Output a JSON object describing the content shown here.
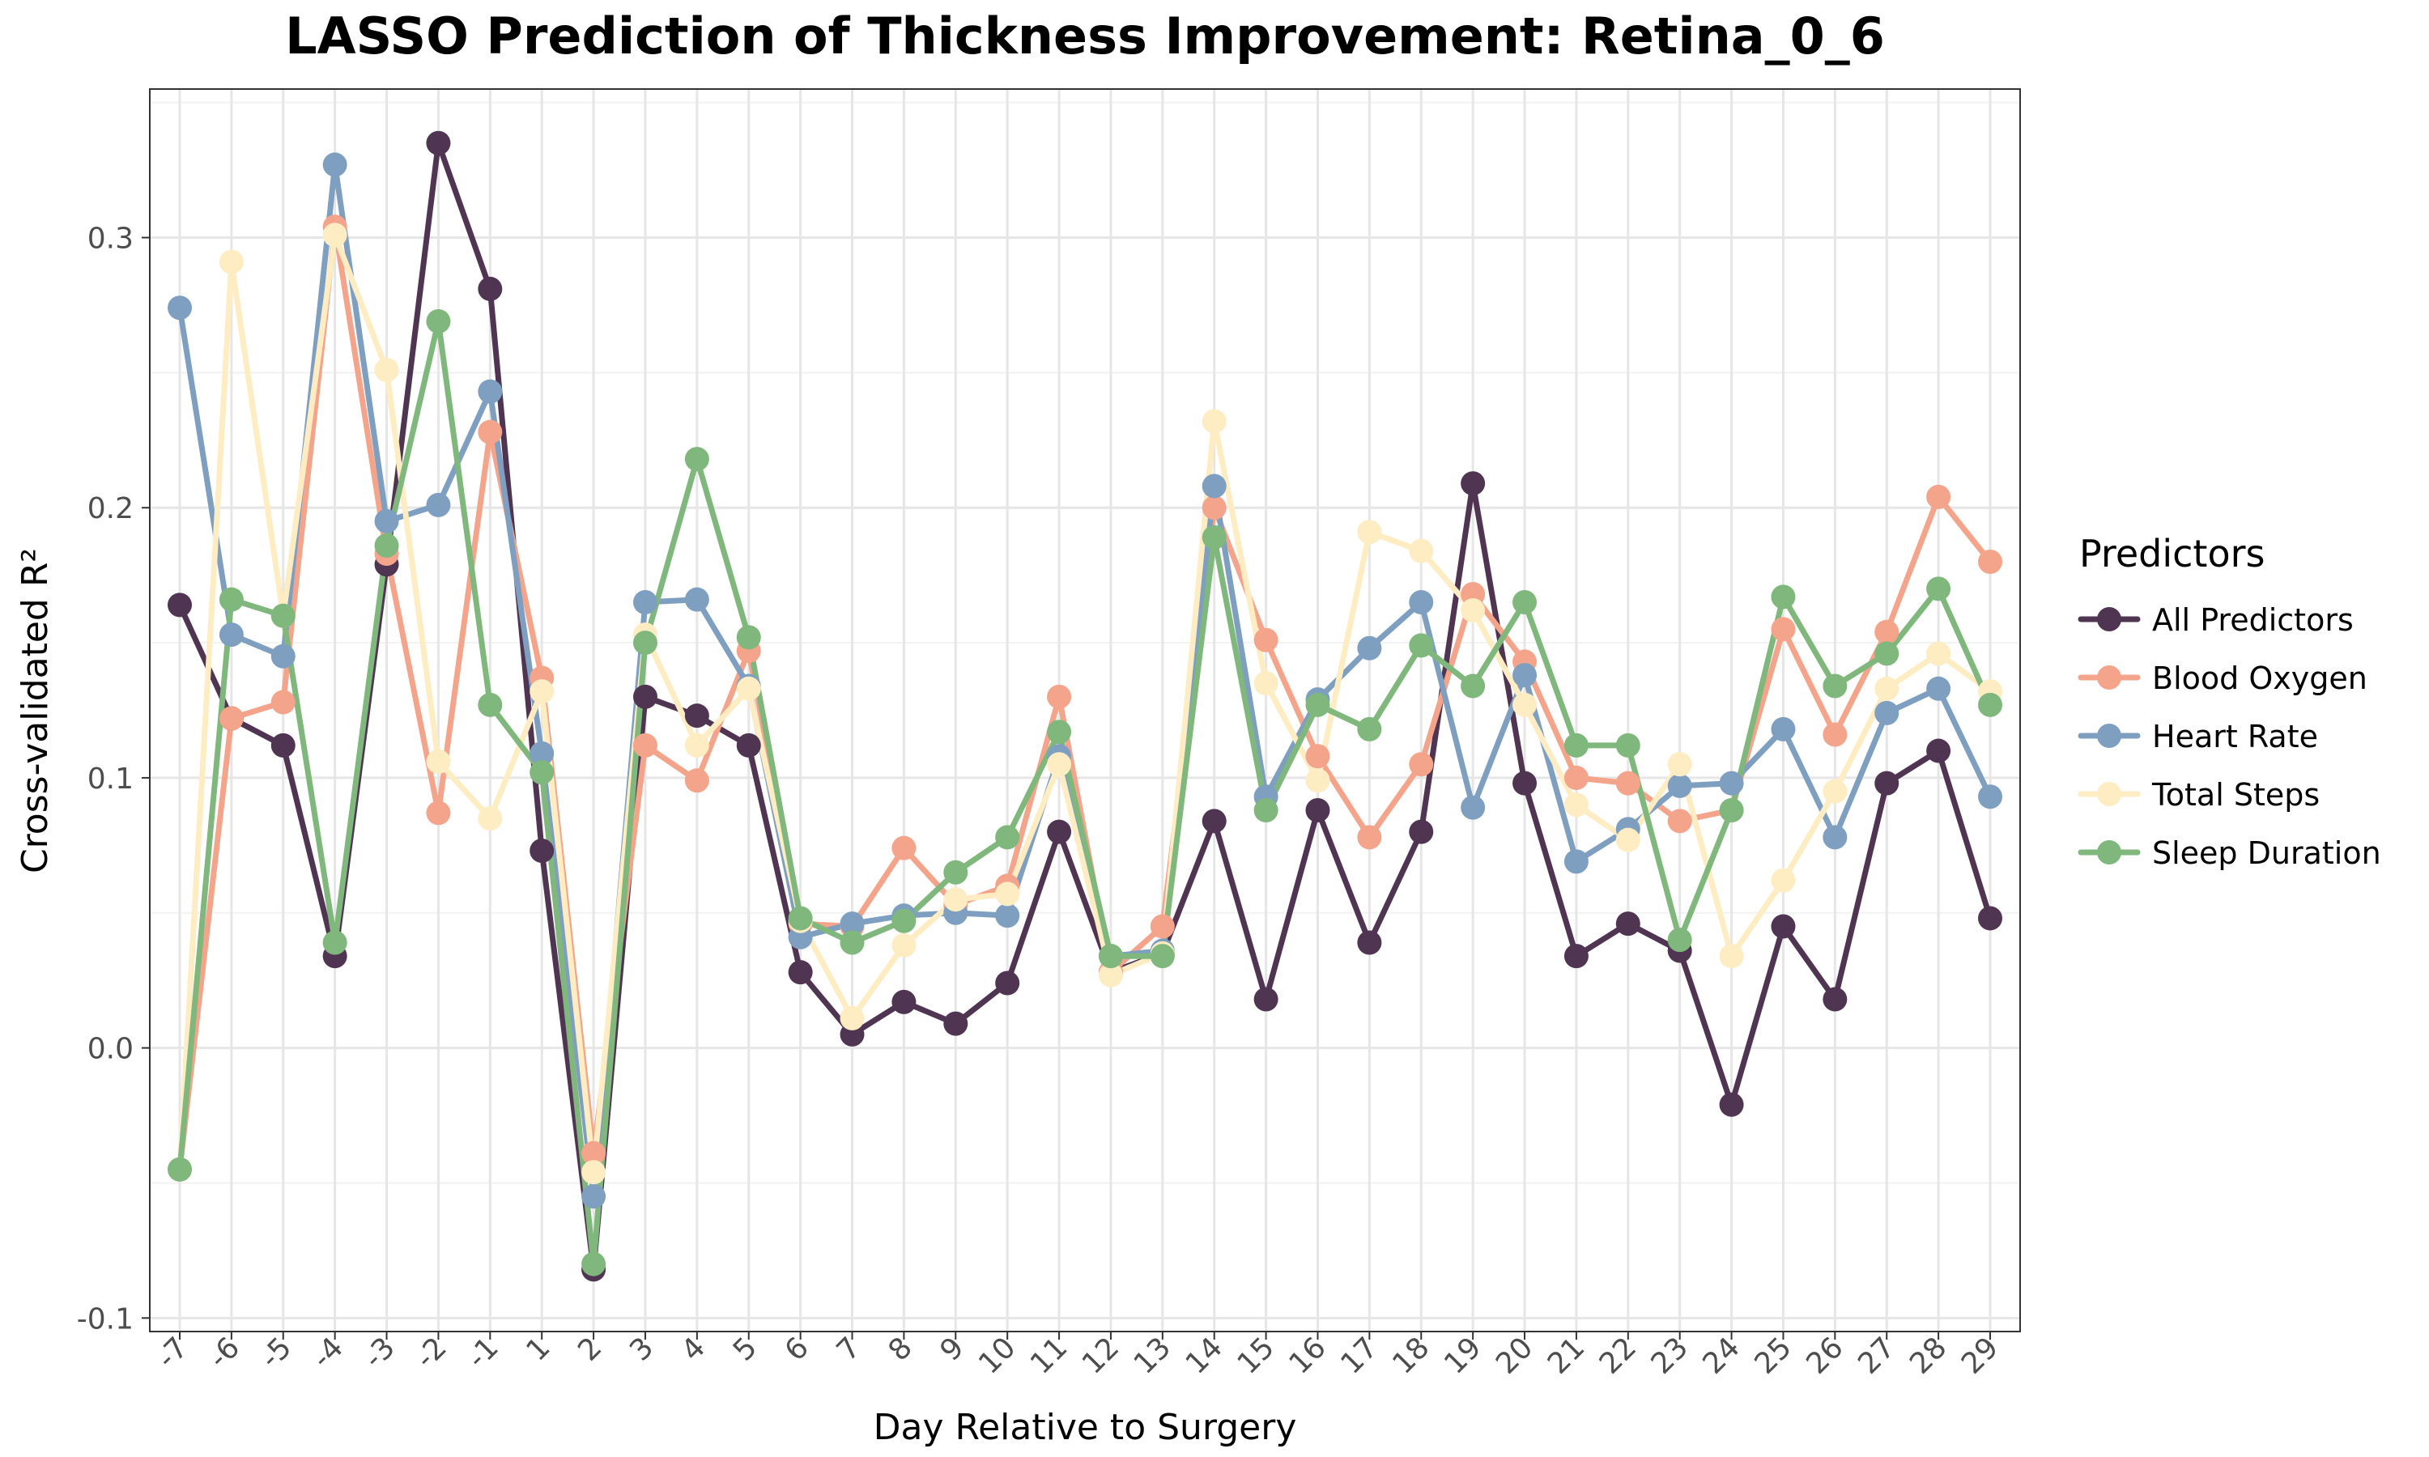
{
  "chart_data": {
    "type": "line",
    "title": "LASSO Prediction of Thickness Improvement: Retina_0_6",
    "xlabel": "Day Relative to Surgery",
    "ylabel": "Cross-validated R²",
    "categories": [
      "-7",
      "-6",
      "-5",
      "-4",
      "-3",
      "-2",
      "-1",
      "1",
      "2",
      "3",
      "4",
      "5",
      "6",
      "7",
      "8",
      "9",
      "10",
      "11",
      "12",
      "13",
      "14",
      "15",
      "16",
      "17",
      "18",
      "19",
      "20",
      "21",
      "22",
      "23",
      "24",
      "25",
      "26",
      "27",
      "28",
      "29"
    ],
    "ylim": [
      -0.105,
      0.355
    ],
    "yticks": [
      -0.1,
      0.0,
      0.1,
      0.2,
      0.3
    ],
    "ytick_labels": [
      "-0.1",
      "0.0",
      "0.1",
      "0.2",
      "0.3"
    ],
    "grid": true,
    "legend": {
      "title": "Predictors",
      "placement": "right"
    },
    "series": [
      {
        "name": "All Predictors",
        "color": "#4f3552",
        "values": [
          0.164,
          0.122,
          0.112,
          0.034,
          0.179,
          0.335,
          0.281,
          0.073,
          -0.082,
          0.13,
          0.123,
          0.112,
          0.028,
          0.005,
          0.017,
          0.009,
          0.024,
          0.08,
          0.028,
          0.035,
          0.084,
          0.018,
          0.088,
          0.039,
          0.08,
          0.209,
          0.098,
          0.034,
          0.046,
          0.036,
          -0.021,
          0.045,
          0.018,
          0.098,
          0.11,
          0.048
        ]
      },
      {
        "name": "Blood Oxygen",
        "color": "#f4a48a",
        "values": [
          -0.045,
          0.122,
          0.128,
          0.304,
          0.183,
          0.087,
          0.228,
          0.137,
          -0.039,
          0.112,
          0.099,
          0.147,
          0.046,
          0.045,
          0.074,
          0.053,
          0.06,
          0.13,
          0.028,
          0.045,
          0.2,
          0.151,
          0.108,
          0.078,
          0.105,
          0.168,
          0.143,
          0.1,
          0.098,
          0.084,
          0.088,
          0.155,
          0.116,
          0.154,
          0.204,
          0.18
        ]
      },
      {
        "name": "Heart Rate",
        "color": "#7f9fc0",
        "values": [
          0.274,
          0.153,
          0.145,
          0.327,
          0.195,
          0.201,
          0.243,
          0.109,
          -0.055,
          0.165,
          0.166,
          0.134,
          0.041,
          0.046,
          0.049,
          0.05,
          0.049,
          0.108,
          0.034,
          0.036,
          0.208,
          0.093,
          0.129,
          0.148,
          0.165,
          0.089,
          0.138,
          0.069,
          0.081,
          0.097,
          0.098,
          0.118,
          0.078,
          0.124,
          0.133,
          0.093
        ]
      },
      {
        "name": "Total Steps",
        "color": "#feecc2",
        "values": [
          -0.045,
          0.291,
          0.16,
          0.301,
          0.251,
          0.106,
          0.085,
          0.132,
          -0.046,
          0.153,
          0.112,
          0.133,
          0.047,
          0.011,
          0.038,
          0.055,
          0.057,
          0.105,
          0.027,
          0.035,
          0.232,
          0.135,
          0.099,
          0.191,
          0.184,
          0.162,
          0.127,
          0.09,
          0.077,
          0.105,
          0.034,
          0.062,
          0.095,
          0.133,
          0.146,
          0.132
        ]
      },
      {
        "name": "Sleep Duration",
        "color": "#7fb77c",
        "values": [
          -0.045,
          0.166,
          0.16,
          0.039,
          0.186,
          0.269,
          0.127,
          0.102,
          -0.08,
          0.15,
          0.218,
          0.152,
          0.048,
          0.039,
          0.047,
          0.065,
          0.078,
          0.117,
          0.034,
          0.034,
          0.189,
          0.088,
          0.127,
          0.118,
          0.149,
          0.134,
          0.165,
          0.112,
          0.112,
          0.04,
          0.088,
          0.167,
          0.134,
          0.146,
          0.17,
          0.127
        ]
      }
    ]
  }
}
